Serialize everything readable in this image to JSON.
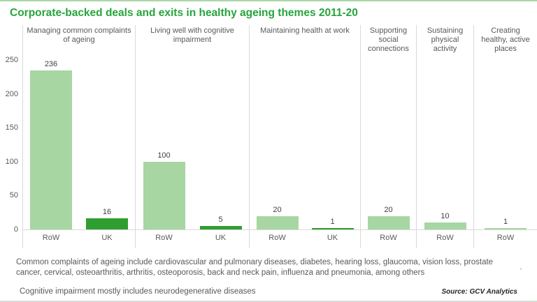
{
  "title": "Corporate-backed deals and exits in healthy ageing themes 2011-20",
  "colors": {
    "row_bar": "#a7d6a2",
    "uk_bar": "#2f9e30",
    "title_green": "#26a53c",
    "axis_line": "#d9d9d9"
  },
  "y_axis": {
    "ticks": [
      250,
      200,
      150,
      100,
      50,
      0
    ]
  },
  "chart_data": {
    "type": "bar",
    "title": "Corporate-backed deals and exits in healthy ageing themes 2011-20",
    "ylabel": "",
    "xlabel": "",
    "ylim": [
      0,
      250
    ],
    "grid": false,
    "legend": "none",
    "panels": [
      {
        "label": "Managing common complaints of ageing",
        "bars": [
          {
            "category": "RoW",
            "series": "RoW",
            "value": 236
          },
          {
            "category": "UK",
            "series": "UK",
            "value": 16
          }
        ]
      },
      {
        "label": "Living well with cognitive impairment",
        "bars": [
          {
            "category": "RoW",
            "series": "RoW",
            "value": 100
          },
          {
            "category": "UK",
            "series": "UK",
            "value": 5
          }
        ]
      },
      {
        "label": "Maintaining health at work",
        "bars": [
          {
            "category": "RoW",
            "series": "RoW",
            "value": 20
          },
          {
            "category": "UK",
            "series": "UK",
            "value": 1
          }
        ]
      },
      {
        "label": "Supporting social connections",
        "bars": [
          {
            "category": "RoW",
            "series": "RoW",
            "value": 20
          }
        ]
      },
      {
        "label": "Sustaining physical activity",
        "bars": [
          {
            "category": "RoW",
            "series": "RoW",
            "value": 10
          }
        ]
      },
      {
        "label": "Creating healthy, active places",
        "bars": [
          {
            "category": "RoW",
            "series": "RoW",
            "value": 1
          }
        ]
      }
    ]
  },
  "footnotes": {
    "note1": "Common complaints of ageing include cardiovascular and pulmonary diseases, diabetes, hearing loss, glaucoma, vision loss, prostate cancer, cervical, osteoarthritis, arthritis, osteoporosis, back and neck pain, influenza and pneumonia, among others",
    "marker": "’",
    "note2": "Cognitive impairment mostly includes neurodegenerative diseases"
  },
  "source": "Source: GCV Analytics"
}
